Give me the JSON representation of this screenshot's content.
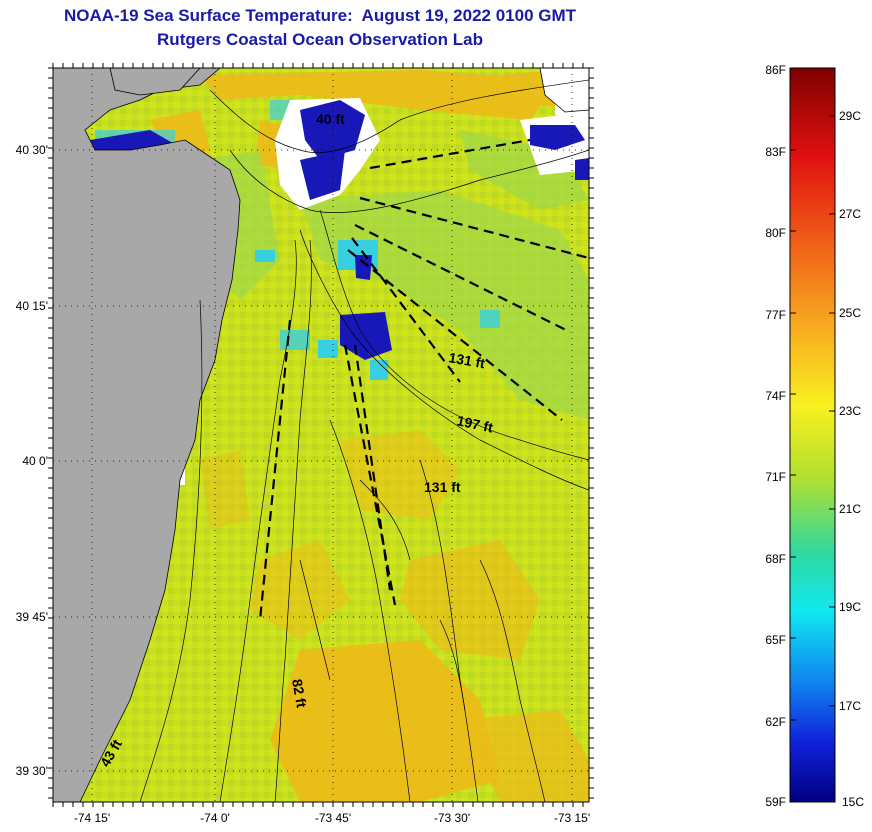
{
  "header": {
    "title": "NOAA-19 Sea Surface Temperature:  August 19, 2022 0100 GMT",
    "subtitle": "Rutgers Coastal Ocean Observation Lab"
  },
  "map": {
    "lat_labels": [
      "40 30'",
      "40 15'",
      "40 0'",
      "39 45'",
      "39 30'"
    ],
    "lon_labels": [
      "-74 15'",
      "-74 0'",
      "-73 45'",
      "-73 30'",
      "-73 15'"
    ],
    "depth_labels": [
      "40 ft",
      "131 ft",
      "197 ft",
      "131 ft",
      "82 ft",
      "43 ft"
    ],
    "colors": {
      "land": "#a8a8a8",
      "ocean_base": "#c8e01e",
      "warm": "#f0b818",
      "cold": "#1818b8",
      "cyan": "#38d0e0"
    }
  },
  "colorbar": {
    "f_labels": [
      "86F",
      "83F",
      "80F",
      "77F",
      "74F",
      "71F",
      "68F",
      "65F",
      "62F",
      "59F"
    ],
    "c_labels": [
      "29C",
      "27C",
      "25C",
      "23C",
      "21C",
      "19C",
      "17C",
      "15C"
    ]
  },
  "chart_data": {
    "type": "heatmap",
    "title": "NOAA-19 Sea Surface Temperature:  August 19, 2022 0100 GMT",
    "subtitle": "Rutgers Coastal Ocean Observation Lab",
    "xlabel": "",
    "ylabel": "",
    "x_ticks": [
      "-74 15'",
      "-74 0'",
      "-73 45'",
      "-73 30'",
      "-73 15'"
    ],
    "y_ticks": [
      "40 30'",
      "40 15'",
      "40 0'",
      "39 45'",
      "39 30'"
    ],
    "colorbar_range_f": [
      59,
      86
    ],
    "colorbar_range_c": [
      15,
      30
    ],
    "colorbar_f_ticks": [
      86,
      83,
      80,
      77,
      74,
      71,
      68,
      65,
      62,
      59
    ],
    "colorbar_c_ticks": [
      29,
      27,
      25,
      23,
      21,
      19,
      17,
      15
    ]
  }
}
